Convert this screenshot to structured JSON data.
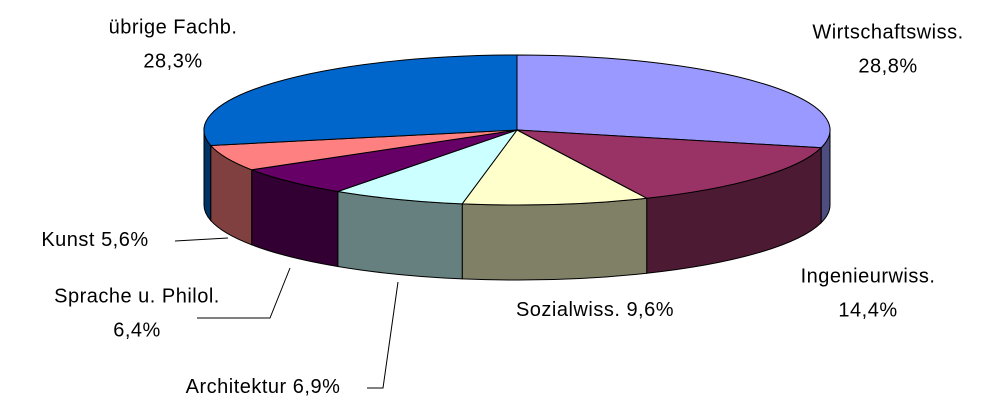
{
  "chart_data": {
    "type": "pie3d",
    "categories": [
      "Wirtschaftswiss.",
      "Ingenieurwiss.",
      "Sozialwiss.",
      "Architektur",
      "Sprache u. Philol.",
      "Kunst",
      "übrige Fachb."
    ],
    "values": [
      28.8,
      14.4,
      9.6,
      6.9,
      6.4,
      5.6,
      28.3
    ],
    "value_labels": [
      "28,8%",
      "14,4%",
      "9,6%",
      "6,9%",
      "6,4%",
      "5,6%",
      "28,3%"
    ],
    "colors": [
      "#9999ff",
      "#993366",
      "#ffffcc",
      "#ccffff",
      "#660066",
      "#ff8080",
      "#0066cc"
    ]
  }
}
